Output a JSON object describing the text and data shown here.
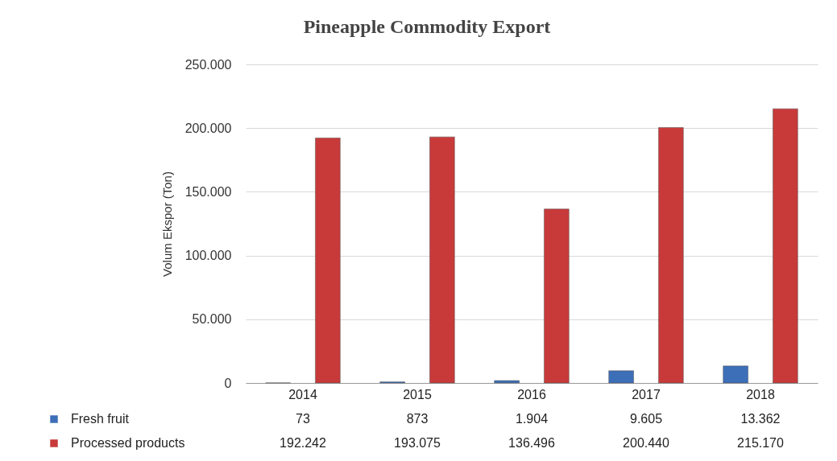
{
  "chart_data": {
    "type": "bar",
    "title": "Pineapple  Commodity  Export",
    "ylabel": "Volum Ekspor (Ton)",
    "categories": [
      "2014",
      "2015",
      "2016",
      "2017",
      "2018"
    ],
    "series": [
      {
        "name": "Fresh fruit",
        "color": "#3d6fb8",
        "values": [
          73,
          873,
          1904,
          9605,
          13362
        ],
        "value_labels": [
          "73",
          "873",
          "1.904",
          "9.605",
          "13.362"
        ]
      },
      {
        "name": "Processed products",
        "color": "#c83a3a",
        "values": [
          192242,
          193075,
          136496,
          200440,
          215170
        ],
        "value_labels": [
          "192.242",
          "193.075",
          "136.496",
          "200.440",
          "215.170"
        ]
      }
    ],
    "ylim": [
      0,
      250000
    ],
    "yticks": [
      0,
      {
        "value": 50000,
        "label": "50.000"
      },
      {
        "value": 100000,
        "label": "100.000"
      },
      {
        "value": 150000,
        "label": "150.000"
      },
      {
        "value": 200000,
        "label": "200.000"
      },
      {
        "value": 250000,
        "label": "250.000"
      }
    ],
    "grid": "y",
    "legend": "bottom left"
  }
}
